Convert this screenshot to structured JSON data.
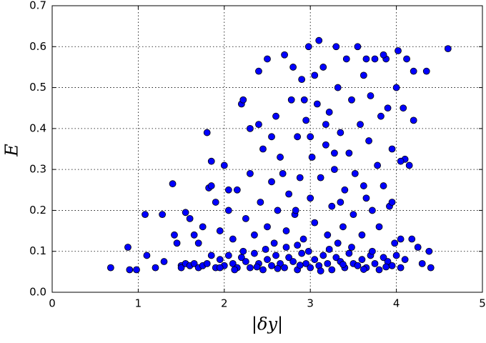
{
  "chart_data": {
    "type": "scatter",
    "xlabel": "|δy|",
    "ylabel": "E",
    "color": "#0000ff",
    "edgecolor": "#000000",
    "grid": true,
    "xlim": [
      0,
      5
    ],
    "ylim": [
      0,
      0.7
    ],
    "xticks": [
      0,
      1,
      2,
      3,
      4,
      5
    ],
    "yticks": [
      {
        "value": 0,
        "label": "0.0"
      },
      0.1,
      0.2,
      0.3,
      0.4,
      0.5,
      0.6,
      0.7
    ],
    "x": [
      0.68,
      0.88,
      0.9,
      0.98,
      1.08,
      1.1,
      1.2,
      1.28,
      1.3,
      1.4,
      1.42,
      1.45,
      1.5,
      1.55,
      1.6,
      1.65,
      1.7,
      1.8,
      1.82,
      1.85,
      4.6,
      4.4,
      4.35,
      4.3,
      4.2,
      4.15,
      4.1,
      4.18,
      4.25,
      4.38,
      1.5,
      1.55,
      1.6,
      1.65,
      1.7,
      1.75,
      1.8,
      1.85,
      1.9,
      1.95,
      2.0,
      2.05,
      2.1,
      2.15,
      2.2,
      2.25,
      2.3,
      2.35,
      2.4,
      2.45,
      2.5,
      2.55,
      2.6,
      2.65,
      2.7,
      2.75,
      2.8,
      2.85,
      2.9,
      2.95,
      3.0,
      3.05,
      3.1,
      3.15,
      3.2,
      3.25,
      3.3,
      3.35,
      3.4,
      3.45,
      3.5,
      3.55,
      3.6,
      3.65,
      3.7,
      3.75,
      3.8,
      3.85,
      3.9,
      3.95,
      4.0,
      4.05,
      4.1,
      1.95,
      2.12,
      2.38,
      2.62,
      2.88,
      3.12,
      3.38,
      3.62,
      3.88,
      2.22,
      2.48,
      2.72,
      2.98,
      3.22,
      3.48,
      3.72,
      3.98,
      4.05,
      2.58,
      3.32,
      2.85,
      1.75,
      1.9,
      1.95,
      2.0,
      2.05,
      2.1,
      2.15,
      2.2,
      2.22,
      2.25,
      2.3,
      2.35,
      2.4,
      2.42,
      2.45,
      2.5,
      2.5,
      2.55,
      2.6,
      2.62,
      2.65,
      2.7,
      2.72,
      2.75,
      2.78,
      2.8,
      2.82,
      2.85,
      2.88,
      2.9,
      2.92,
      2.95,
      2.98,
      3.0,
      3.02,
      3.05,
      3.08,
      3.1,
      3.12,
      3.15,
      3.18,
      3.2,
      3.22,
      3.25,
      3.28,
      3.3,
      3.32,
      3.35,
      3.38,
      3.4,
      3.42,
      3.45,
      3.48,
      3.5,
      3.52,
      3.55,
      3.58,
      3.6,
      3.62,
      3.65,
      3.68,
      3.7,
      3.72,
      3.75,
      3.78,
      3.8,
      3.82,
      3.85,
      3.88,
      3.9,
      3.92,
      3.95,
      4.0,
      4.02,
      4.05,
      4.08,
      4.12,
      4.2,
      1.85,
      2.05,
      2.3,
      2.55,
      2.68,
      3.0,
      3.05,
      3.18,
      3.28,
      2.93,
      2.83,
      3.35,
      3.62,
      3.95,
      2.4,
      3.65,
      3.85
    ],
    "values": [
      0.06,
      0.11,
      0.055,
      0.055,
      0.19,
      0.09,
      0.06,
      0.19,
      0.075,
      0.265,
      0.14,
      0.12,
      0.065,
      0.195,
      0.18,
      0.14,
      0.12,
      0.39,
      0.255,
      0.32,
      0.595,
      0.06,
      0.54,
      0.07,
      0.42,
      0.31,
      0.325,
      0.13,
      0.11,
      0.1,
      0.06,
      0.07,
      0.065,
      0.07,
      0.06,
      0.065,
      0.07,
      0.09,
      0.06,
      0.08,
      0.065,
      0.09,
      0.07,
      0.06,
      0.085,
      0.075,
      0.06,
      0.095,
      0.07,
      0.055,
      0.08,
      0.065,
      0.09,
      0.07,
      0.06,
      0.085,
      0.075,
      0.055,
      0.095,
      0.07,
      0.06,
      0.08,
      0.065,
      0.09,
      0.07,
      0.055,
      0.085,
      0.075,
      0.06,
      0.095,
      0.07,
      0.065,
      0.08,
      0.06,
      0.09,
      0.07,
      0.055,
      0.085,
      0.075,
      0.065,
      0.09,
      0.06,
      0.08,
      0.06,
      0.055,
      0.062,
      0.058,
      0.066,
      0.052,
      0.068,
      0.056,
      0.062,
      0.1,
      0.105,
      0.11,
      0.1,
      0.105,
      0.11,
      0.1,
      0.12,
      0.13,
      0.12,
      0.12,
      0.115,
      0.16,
      0.22,
      0.15,
      0.31,
      0.2,
      0.13,
      0.25,
      0.46,
      0.47,
      0.18,
      0.29,
      0.14,
      0.41,
      0.22,
      0.35,
      0.16,
      0.57,
      0.27,
      0.43,
      0.2,
      0.33,
      0.58,
      0.15,
      0.24,
      0.47,
      0.55,
      0.19,
      0.38,
      0.28,
      0.52,
      0.13,
      0.42,
      0.6,
      0.23,
      0.33,
      0.17,
      0.46,
      0.615,
      0.28,
      0.55,
      0.36,
      0.14,
      0.44,
      0.21,
      0.3,
      0.6,
      0.5,
      0.39,
      0.16,
      0.25,
      0.57,
      0.34,
      0.47,
      0.19,
      0.29,
      0.6,
      0.41,
      0.14,
      0.53,
      0.23,
      0.37,
      0.48,
      0.2,
      0.57,
      0.31,
      0.16,
      0.43,
      0.26,
      0.57,
      0.45,
      0.21,
      0.35,
      0.5,
      0.59,
      0.32,
      0.45,
      0.57,
      0.54,
      0.26,
      0.25,
      0.4,
      0.38,
      0.29,
      0.38,
      0.53,
      0.41,
      0.34,
      0.47,
      0.2,
      0.22,
      0.26,
      0.22,
      0.54,
      0.57,
      0.58
    ]
  }
}
